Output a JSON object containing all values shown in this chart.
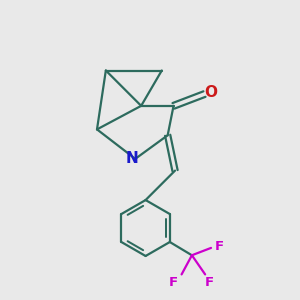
{
  "bg_color": "#e9e9e9",
  "bond_color": "#2d6b5e",
  "N_color": "#1a1acc",
  "O_color": "#cc1a1a",
  "F_color": "#cc00cc",
  "line_width": 1.6,
  "font_size_atom": 11,
  "font_size_small": 9.5,
  "xlim": [
    0,
    10
  ],
  "ylim": [
    0,
    10
  ]
}
